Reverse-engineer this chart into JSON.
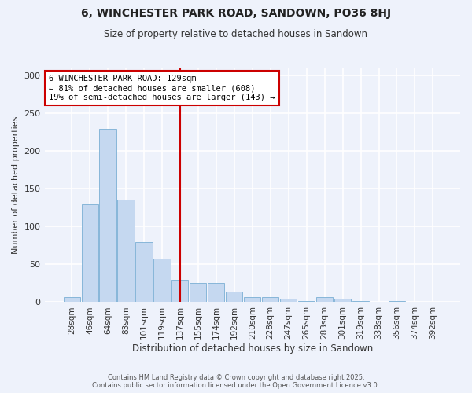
{
  "title": "6, WINCHESTER PARK ROAD, SANDOWN, PO36 8HJ",
  "subtitle": "Size of property relative to detached houses in Sandown",
  "xlabel": "Distribution of detached houses by size in Sandown",
  "ylabel": "Number of detached properties",
  "bar_labels": [
    "28sqm",
    "46sqm",
    "64sqm",
    "83sqm",
    "101sqm",
    "119sqm",
    "137sqm",
    "155sqm",
    "174sqm",
    "192sqm",
    "210sqm",
    "228sqm",
    "247sqm",
    "265sqm",
    "283sqm",
    "301sqm",
    "319sqm",
    "338sqm",
    "356sqm",
    "374sqm",
    "392sqm"
  ],
  "bar_values": [
    7,
    129,
    229,
    136,
    80,
    58,
    30,
    25,
    25,
    14,
    7,
    7,
    5,
    2,
    7,
    5,
    1,
    0,
    1,
    0,
    0
  ],
  "bar_color": "#c5d8f0",
  "bar_edge_color": "#7aafd4",
  "vline_x": 6.0,
  "vline_color": "#cc0000",
  "annotation_title": "6 WINCHESTER PARK ROAD: 129sqm",
  "annotation_line1": "← 81% of detached houses are smaller (608)",
  "annotation_line2": "19% of semi-detached houses are larger (143) →",
  "annotation_box_color": "#ffffff",
  "annotation_box_edge": "#cc0000",
  "ylim": [
    0,
    310
  ],
  "yticks": [
    0,
    50,
    100,
    150,
    200,
    250,
    300
  ],
  "footnote1": "Contains HM Land Registry data © Crown copyright and database right 2025.",
  "footnote2": "Contains public sector information licensed under the Open Government Licence v3.0.",
  "background_color": "#eef2fb",
  "grid_color": "#ffffff"
}
